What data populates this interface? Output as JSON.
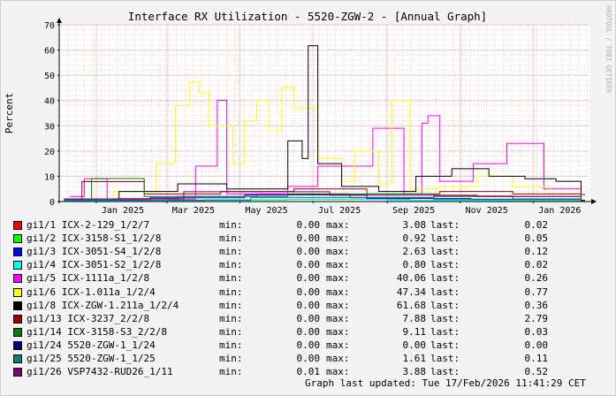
{
  "title": "Interface RX Utilization - 5520-ZGW-2 - [Annual Graph]",
  "watermark": "RRDTOOL / TOBI OETIKER",
  "footer": "Graph last updated: Tue 17/Feb/2026 11:41:29 CET",
  "legend_labels": {
    "min": "min:",
    "max": "max:",
    "last": "last:"
  },
  "chart_data": {
    "type": "line",
    "ylabel": "Percent",
    "ylim": [
      0,
      70
    ],
    "yticks": [
      0,
      10,
      20,
      30,
      40,
      50,
      60,
      70
    ],
    "x_range": [
      "2024-12-01",
      "2026-02-17"
    ],
    "xticks": [
      {
        "label": "Jan 2025",
        "date": "2025-01-01"
      },
      {
        "label": "Mar 2025",
        "date": "2025-03-01"
      },
      {
        "label": "May 2025",
        "date": "2025-05-01"
      },
      {
        "label": "Jul 2025",
        "date": "2025-07-01"
      },
      {
        "label": "Sep 2025",
        "date": "2025-09-01"
      },
      {
        "label": "Nov 2025",
        "date": "2025-11-01"
      },
      {
        "label": "Jan 2026",
        "date": "2026-01-01"
      }
    ],
    "grid": true,
    "series": [
      {
        "name": "gi1/1 ICX-2-129_1/2/7",
        "color": "#ff0000",
        "min": "0.00",
        "max": "3.08",
        "last": "0.02",
        "points": [
          [
            "2024-12-05",
            0.5
          ],
          [
            "2025-01-20",
            1.2
          ],
          [
            "2025-03-10",
            2.0
          ],
          [
            "2025-05-15",
            3.08
          ],
          [
            "2025-08-01",
            1.5
          ],
          [
            "2025-10-10",
            2.2
          ],
          [
            "2025-12-15",
            1.0
          ],
          [
            "2026-02-10",
            0.02
          ]
        ]
      },
      {
        "name": "gi1/2 ICX-3158-S1_1/2/8",
        "color": "#00ff00",
        "min": "0.00",
        "max": "0.92",
        "last": "0.05",
        "points": [
          [
            "2024-12-05",
            0.3
          ],
          [
            "2025-03-01",
            0.6
          ],
          [
            "2025-06-10",
            0.92
          ],
          [
            "2025-09-20",
            0.5
          ],
          [
            "2025-12-01",
            0.4
          ],
          [
            "2026-02-10",
            0.05
          ]
        ]
      },
      {
        "name": "gi1/3 ICX-3051-S4_1/2/8",
        "color": "#0000ff",
        "min": "0.00",
        "max": "2.63",
        "last": "0.12",
        "points": [
          [
            "2024-12-05",
            0.6
          ],
          [
            "2025-02-15",
            1.5
          ],
          [
            "2025-05-05",
            2.63
          ],
          [
            "2025-08-15",
            1.2
          ],
          [
            "2025-11-10",
            0.9
          ],
          [
            "2026-02-10",
            0.12
          ]
        ]
      },
      {
        "name": "gi1/4 ICX-3051-S2_1/2/8",
        "color": "#00ffff",
        "min": "0.00",
        "max": "0.80",
        "last": "0.02",
        "points": [
          [
            "2024-12-05",
            0.2
          ],
          [
            "2025-04-01",
            0.8
          ],
          [
            "2025-09-01",
            0.5
          ],
          [
            "2026-02-10",
            0.02
          ]
        ]
      },
      {
        "name": "gi1/5 ICX-1111a_1/2/8",
        "color": "#ff00ff",
        "min": "0.00",
        "max": "40.06",
        "last": "0.26",
        "points": [
          [
            "2024-12-10",
            2
          ],
          [
            "2024-12-22",
            9
          ],
          [
            "2025-01-10",
            1
          ],
          [
            "2025-03-25",
            14
          ],
          [
            "2025-04-12",
            40.06
          ],
          [
            "2025-04-20",
            3
          ],
          [
            "2025-06-10",
            6
          ],
          [
            "2025-07-05",
            14
          ],
          [
            "2025-08-20",
            29
          ],
          [
            "2025-09-15",
            3
          ],
          [
            "2025-09-30",
            31
          ],
          [
            "2025-10-05",
            34
          ],
          [
            "2025-10-15",
            8
          ],
          [
            "2025-11-12",
            15
          ],
          [
            "2025-12-10",
            23
          ],
          [
            "2026-01-10",
            5
          ],
          [
            "2026-02-10",
            0.26
          ]
        ]
      },
      {
        "name": "gi1/6 ICX-1.011a_1/2/4",
        "color": "#ffff00",
        "min": "0.00",
        "max": "47.34",
        "last": "0.77",
        "points": [
          [
            "2024-12-05",
            1
          ],
          [
            "2025-01-15",
            4
          ],
          [
            "2025-02-20",
            15
          ],
          [
            "2025-03-08",
            38
          ],
          [
            "2025-03-20",
            47.34
          ],
          [
            "2025-03-28",
            43
          ],
          [
            "2025-04-05",
            30
          ],
          [
            "2025-04-25",
            15
          ],
          [
            "2025-05-05",
            32
          ],
          [
            "2025-05-15",
            40
          ],
          [
            "2025-05-25",
            28
          ],
          [
            "2025-06-05",
            45
          ],
          [
            "2025-06-15",
            37
          ],
          [
            "2025-07-05",
            17
          ],
          [
            "2025-07-25",
            8
          ],
          [
            "2025-08-05",
            20
          ],
          [
            "2025-08-25",
            7
          ],
          [
            "2025-09-05",
            40
          ],
          [
            "2025-09-20",
            5
          ],
          [
            "2025-10-15",
            6
          ],
          [
            "2025-11-15",
            10
          ],
          [
            "2025-12-15",
            6
          ],
          [
            "2026-01-15",
            3
          ],
          [
            "2026-02-10",
            0.77
          ]
        ]
      },
      {
        "name": "gi1/8 ICX-ZGW-1.211a_1/2/4",
        "color": "#000000",
        "min": "0.00",
        "max": "61.68",
        "last": "0.36",
        "points": [
          [
            "2024-12-05",
            1
          ],
          [
            "2025-01-20",
            4
          ],
          [
            "2025-03-10",
            7
          ],
          [
            "2025-04-20",
            5
          ],
          [
            "2025-06-10",
            24
          ],
          [
            "2025-06-22",
            17
          ],
          [
            "2025-06-27",
            61.68
          ],
          [
            "2025-07-05",
            15
          ],
          [
            "2025-07-25",
            6
          ],
          [
            "2025-08-25",
            4
          ],
          [
            "2025-09-25",
            10
          ],
          [
            "2025-10-25",
            13
          ],
          [
            "2025-11-25",
            10
          ],
          [
            "2025-12-25",
            9
          ],
          [
            "2026-01-20",
            8
          ],
          [
            "2026-02-10",
            0.36
          ]
        ]
      },
      {
        "name": "gi1/13 ICX-3237_2/2/8",
        "color": "#a00000",
        "min": "0.00",
        "max": "7.88",
        "last": "2.79",
        "points": [
          [
            "2024-12-05",
            1
          ],
          [
            "2024-12-20",
            7.88
          ],
          [
            "2025-02-10",
            3
          ],
          [
            "2025-04-15",
            4
          ],
          [
            "2025-06-15",
            5
          ],
          [
            "2025-08-15",
            3
          ],
          [
            "2025-10-15",
            4
          ],
          [
            "2025-12-15",
            3
          ],
          [
            "2026-02-10",
            2.79
          ]
        ]
      },
      {
        "name": "gi1/14 ICX-3158-S3_2/2/8",
        "color": "#008000",
        "min": "0.00",
        "max": "9.11",
        "last": "0.03",
        "points": [
          [
            "2024-12-05",
            1
          ],
          [
            "2024-12-28",
            9.11
          ],
          [
            "2025-02-10",
            2
          ],
          [
            "2025-06-10",
            3
          ],
          [
            "2025-10-10",
            2
          ],
          [
            "2026-02-10",
            0.03
          ]
        ]
      },
      {
        "name": "gi1/24 5520-ZGW-1_1/24",
        "color": "#000080",
        "min": "0.00",
        "max": "0.00",
        "last": "0.00",
        "points": [
          [
            "2024-12-05",
            0
          ],
          [
            "2026-02-10",
            0
          ]
        ]
      },
      {
        "name": "gi1/25 5520-ZGW-1_1/25",
        "color": "#008080",
        "min": "0.00",
        "max": "1.61",
        "last": "0.11",
        "points": [
          [
            "2024-12-05",
            0.5
          ],
          [
            "2025-05-10",
            1.61
          ],
          [
            "2025-10-10",
            0.8
          ],
          [
            "2026-02-10",
            0.11
          ]
        ]
      },
      {
        "name": "gi1/26 VSP7432-RUD26_1/11",
        "color": "#800080",
        "min": "0.01",
        "max": "3.88",
        "last": "0.52",
        "points": [
          [
            "2024-12-05",
            1
          ],
          [
            "2025-03-15",
            3.88
          ],
          [
            "2025-07-15",
            2.5
          ],
          [
            "2025-11-15",
            2
          ],
          [
            "2026-02-10",
            0.52
          ]
        ]
      }
    ]
  }
}
